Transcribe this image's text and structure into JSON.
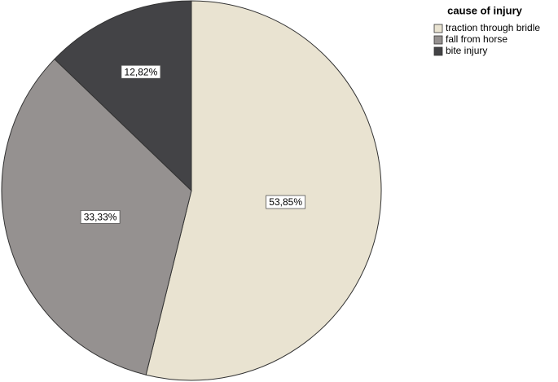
{
  "chart_data": {
    "type": "pie",
    "legend_title": "cause of injury",
    "categories": [
      "traction through bridle",
      "fall from horse",
      "bite injury"
    ],
    "values": [
      53.85,
      33.33,
      12.82
    ],
    "value_labels": [
      "53,85%",
      "33,33%",
      "12,82%"
    ],
    "colors": [
      "#e9e3d1",
      "#959190",
      "#434346"
    ],
    "legend": "top-right"
  }
}
